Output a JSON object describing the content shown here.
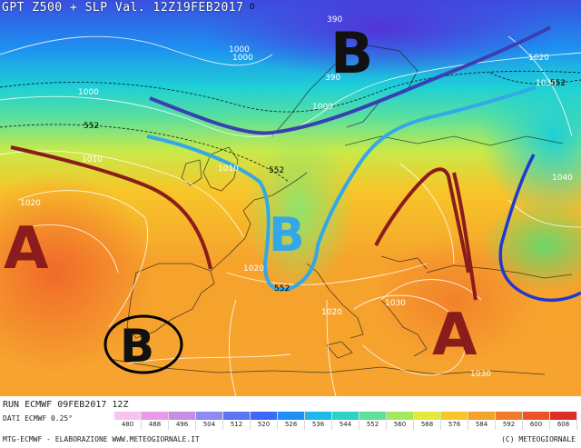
{
  "title": "GPT Z500 + SLP Val. 12Z19FEB2017",
  "run": "RUN ECMWF 09FEB2017 12Z",
  "data_source": "DATI ECMWF 0.25°",
  "credit_left": "MTG-ECMWF - ELABORAZIONE WWW.METEOGIORNALE.IT",
  "credit_right": "(C) METEOGIORNALE",
  "map_labels": {
    "corner_value": "0",
    "high_west": "A",
    "high_southeast": "A",
    "low_north": "B",
    "low_central": "B",
    "low_iberia": "B"
  },
  "pressure_labels": {
    "p390a": "390",
    "p390b": "390",
    "p1000a": "1000",
    "p1000b": "1000",
    "p1000c": "1000",
    "p1000d": "1000",
    "p1020a": "1020",
    "p1020b": "1020",
    "p1020c": "1020",
    "p1020d": "1020",
    "p1010a": "1010",
    "p1010b": "1010",
    "p1030a": "1030",
    "p1030b": "1030",
    "p1030c": "1030",
    "p1040": "1040",
    "p552a": "552",
    "p552b": "552",
    "p552c": "552",
    "p552d": "552"
  },
  "scale": {
    "labels": [
      "480",
      "488",
      "496",
      "504",
      "512",
      "520",
      "528",
      "536",
      "544",
      "552",
      "560",
      "568",
      "576",
      "584",
      "592",
      "600",
      "608"
    ],
    "colors": [
      "#f7c4f1",
      "#e59be8",
      "#c58ee3",
      "#8f8af0",
      "#5b74f2",
      "#3a6af5",
      "#1e8ff0",
      "#1eb8ea",
      "#2dd2c6",
      "#5ee09a",
      "#a6e85c",
      "#e3ea3a",
      "#f7c62a",
      "#f6a32c",
      "#f17a2a",
      "#e95426",
      "#de2f24"
    ]
  }
}
